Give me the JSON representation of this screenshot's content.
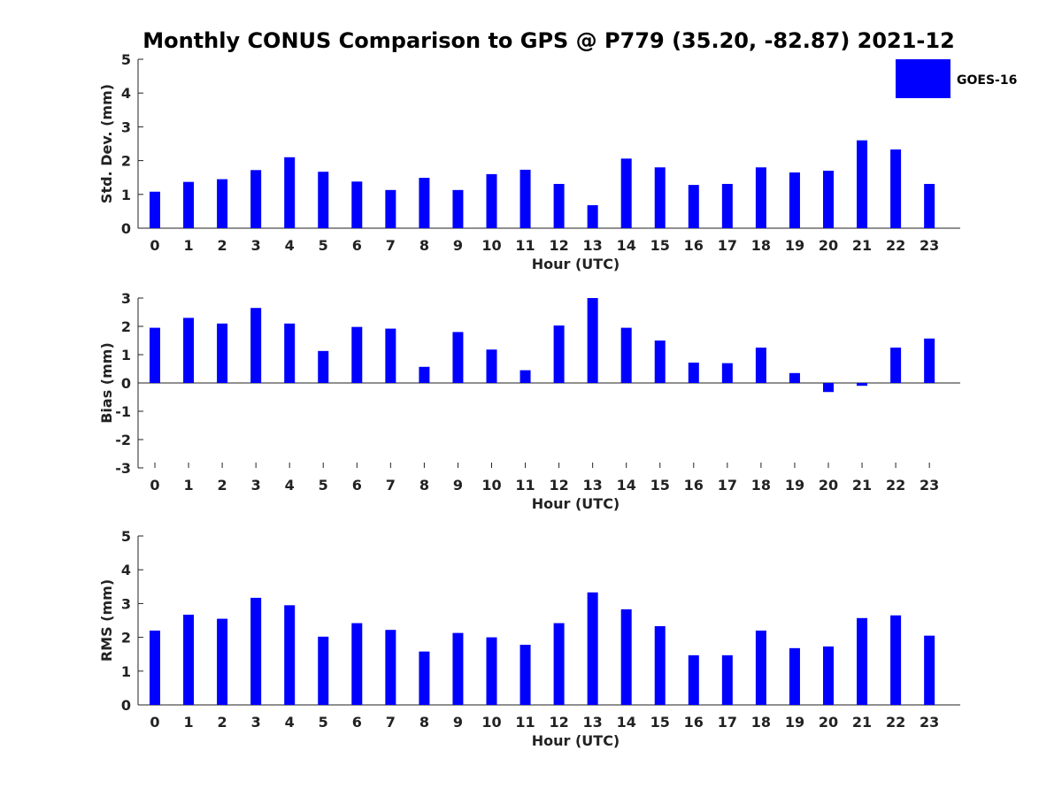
{
  "title": "Monthly CONUS Comparison to GPS @ P779 (35.20, -82.87) 2021-12",
  "legend": {
    "label": "GOES-16",
    "placement": "top-right"
  },
  "colors": {
    "bar": "#0000ff",
    "axis": "#222222",
    "text": "#222222"
  },
  "chart_data": [
    {
      "type": "bar",
      "xlabel": "Hour (UTC)",
      "ylabel": "Std. Dev. (mm)",
      "ylim": [
        0,
        5
      ],
      "yticks": [
        0,
        1,
        2,
        3,
        4,
        5
      ],
      "categories": [
        "0",
        "1",
        "2",
        "3",
        "4",
        "5",
        "6",
        "7",
        "8",
        "9",
        "10",
        "11",
        "12",
        "13",
        "14",
        "15",
        "16",
        "17",
        "18",
        "19",
        "20",
        "21",
        "22",
        "23"
      ],
      "series": [
        {
          "name": "GOES-16",
          "values": [
            1.08,
            1.37,
            1.45,
            1.72,
            2.1,
            1.67,
            1.38,
            1.13,
            1.49,
            1.13,
            1.6,
            1.73,
            1.31,
            0.68,
            2.06,
            1.8,
            1.28,
            1.31,
            1.8,
            1.65,
            1.7,
            2.6,
            2.33,
            1.31
          ]
        }
      ],
      "grid": false
    },
    {
      "type": "bar",
      "xlabel": "Hour (UTC)",
      "ylabel": "Bias (mm)",
      "ylim": [
        -3,
        3
      ],
      "yticks": [
        -3,
        -2,
        -1,
        0,
        1,
        2,
        3
      ],
      "categories": [
        "0",
        "1",
        "2",
        "3",
        "4",
        "5",
        "6",
        "7",
        "8",
        "9",
        "10",
        "11",
        "12",
        "13",
        "14",
        "15",
        "16",
        "17",
        "18",
        "19",
        "20",
        "21",
        "22",
        "23"
      ],
      "series": [
        {
          "name": "GOES-16",
          "values": [
            1.95,
            2.3,
            2.1,
            2.65,
            2.1,
            1.13,
            1.98,
            1.92,
            0.57,
            1.8,
            1.18,
            0.45,
            2.03,
            3.0,
            1.95,
            1.5,
            0.72,
            0.7,
            1.25,
            0.35,
            -0.32,
            -0.1,
            1.25,
            1.57
          ]
        }
      ],
      "grid": false
    },
    {
      "type": "bar",
      "xlabel": "Hour (UTC)",
      "ylabel": "RMS (mm)",
      "ylim": [
        0,
        5
      ],
      "yticks": [
        0,
        1,
        2,
        3,
        4,
        5
      ],
      "categories": [
        "0",
        "1",
        "2",
        "3",
        "4",
        "5",
        "6",
        "7",
        "8",
        "9",
        "10",
        "11",
        "12",
        "13",
        "14",
        "15",
        "16",
        "17",
        "18",
        "19",
        "20",
        "21",
        "22",
        "23"
      ],
      "series": [
        {
          "name": "GOES-16",
          "values": [
            2.2,
            2.67,
            2.55,
            3.17,
            2.95,
            2.02,
            2.42,
            2.22,
            1.58,
            2.13,
            2.0,
            1.78,
            2.42,
            3.33,
            2.83,
            2.33,
            1.47,
            1.47,
            2.2,
            1.68,
            1.73,
            2.57,
            2.65,
            2.05
          ]
        }
      ],
      "grid": false
    }
  ]
}
